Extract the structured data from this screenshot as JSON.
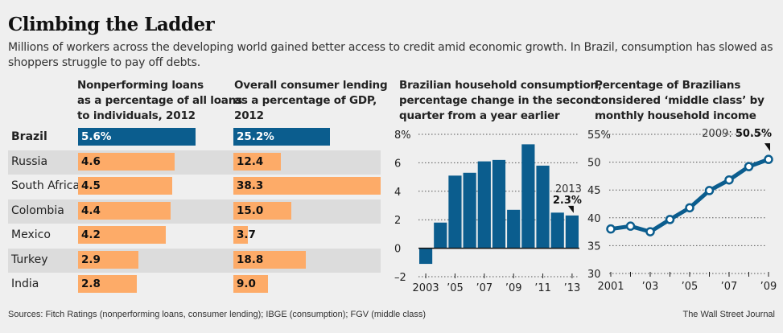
{
  "title": "Climbing the Ladder",
  "subtitle": "Millions of workers across the developing world gained better access to credit amid economic growth. In Brazil, consumption has slowed as shoppers struggle to pay off debts.",
  "colors": {
    "highlight": "#0b5d8e",
    "bar": "#fdab68",
    "row_shade": "#dcdcdc",
    "background": "#efefef"
  },
  "footer": {
    "sources": "Sources: Fitch Ratings (nonperforming loans, consumer lending); IBGE (consumption); FGV (middle class)",
    "credit": "The Wall Street Journal"
  },
  "chart_data": [
    {
      "type": "bar",
      "orientation": "horizontal",
      "title": "Nonperforming loans as a percentage of all loans to individuals, 2012",
      "title_lines": [
        "Nonperforming loans",
        "as a percentage of all loans",
        "to individuals, 2012"
      ],
      "categories": [
        "Brazil",
        "Russia",
        "South Africa",
        "Colombia",
        "Mexico",
        "Turkey",
        "India"
      ],
      "values": [
        5.6,
        4.6,
        4.5,
        4.4,
        4.2,
        2.9,
        2.8
      ],
      "labels": [
        "5.6%",
        "4.6",
        "4.5",
        "4.4",
        "4.2",
        "2.9",
        "2.8"
      ],
      "highlight": "Brazil",
      "xlim": [
        0,
        6.3
      ]
    },
    {
      "type": "bar",
      "orientation": "horizontal",
      "title": "Overall consumer lending as a percentage of GDP, 2012",
      "title_lines": [
        "Overall consumer lending",
        "as a percentage of GDP,",
        "2012"
      ],
      "categories": [
        "Brazil",
        "Russia",
        "South Africa",
        "Colombia",
        "Mexico",
        "Turkey",
        "India"
      ],
      "values": [
        25.2,
        12.4,
        38.3,
        15.0,
        3.7,
        18.8,
        9.0
      ],
      "labels": [
        "25.2%",
        "12.4",
        "38.3",
        "15.0",
        "3.7",
        "18.8",
        "9.0"
      ],
      "highlight": "Brazil",
      "xlim": [
        0,
        38.3
      ]
    },
    {
      "type": "bar",
      "title": "Brazilian household consumption, percentage change in the second quarter from a year earlier",
      "title_lines": [
        "Brazilian household consumption,",
        "percentage change in the second",
        "quarter from a year earlier"
      ],
      "x": [
        2003,
        2004,
        2005,
        2006,
        2007,
        2008,
        2009,
        2010,
        2011,
        2012,
        2013
      ],
      "values": [
        -1.1,
        1.8,
        5.1,
        5.3,
        6.1,
        6.2,
        2.7,
        7.3,
        5.8,
        2.5,
        2.3
      ],
      "ylim": [
        -2,
        8
      ],
      "yticks": [
        8,
        6,
        4,
        2,
        0,
        -2
      ],
      "ytick_labels": [
        "8%",
        "6",
        "4",
        "2",
        "0",
        "–2"
      ],
      "xtick_labels": [
        "2003",
        "’05",
        "’07",
        "’09",
        "’11",
        "’13"
      ],
      "xtick_years": [
        2003,
        2005,
        2007,
        2009,
        2011,
        2013
      ],
      "annotation": {
        "year": "2013",
        "value": "2.3%"
      },
      "grid": true
    },
    {
      "type": "line",
      "title": "Percentage of Brazilians considered ‘middle class’ by monthly household income",
      "title_lines": [
        "Percentage of Brazilians",
        "considered ‘middle class’ by",
        "monthly household income"
      ],
      "x": [
        2001,
        2002,
        2003,
        2004,
        2005,
        2006,
        2007,
        2008,
        2009
      ],
      "values": [
        38.0,
        38.5,
        37.5,
        39.7,
        41.8,
        44.9,
        46.8,
        49.2,
        50.5
      ],
      "ylim": [
        30,
        55
      ],
      "yticks": [
        55,
        50,
        45,
        40,
        35,
        30
      ],
      "ytick_labels": [
        "55%",
        "50",
        "45",
        "40",
        "35",
        "30"
      ],
      "xtick_labels": [
        "2001",
        "’03",
        "’05",
        "’07",
        "’09"
      ],
      "xtick_years": [
        2001,
        2003,
        2005,
        2007,
        2009
      ],
      "annotation": {
        "prefix": "2009: ",
        "value": "50.5%"
      },
      "grid": true
    }
  ]
}
